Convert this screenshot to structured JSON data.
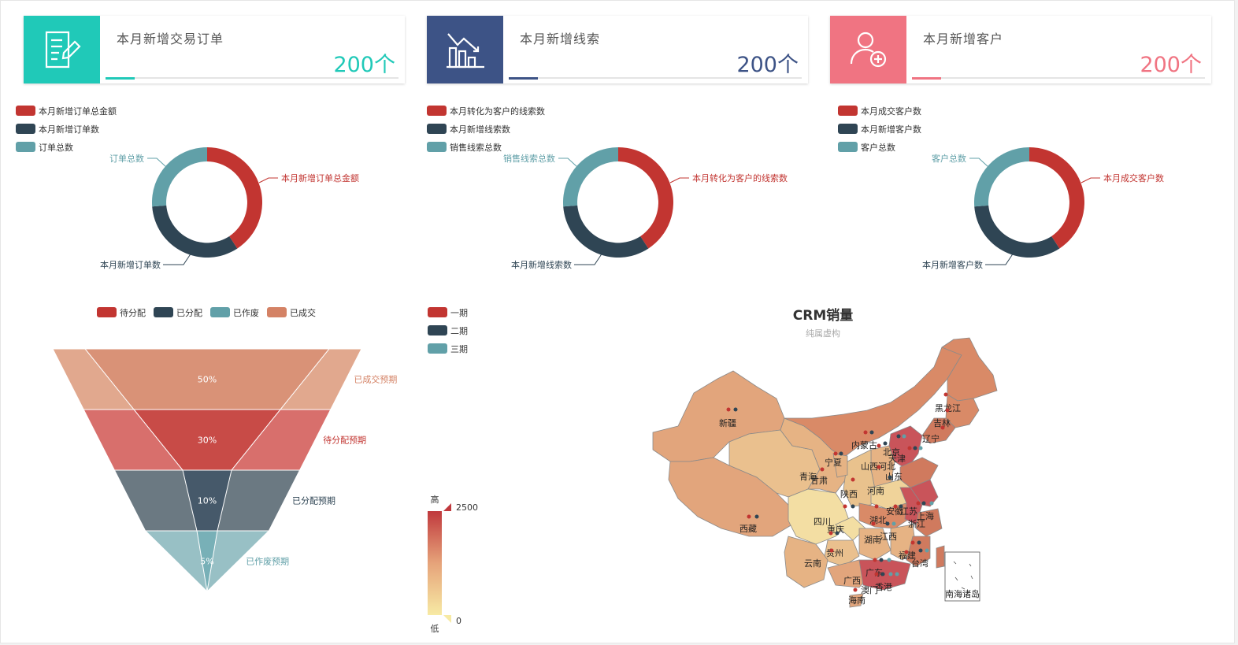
{
  "cards": [
    {
      "title": "本月新增交易订单",
      "value": "200个",
      "color": "#20c9b8",
      "icon": "document-edit-icon"
    },
    {
      "title": "本月新增线索",
      "value": "200个",
      "color": "#3d5386",
      "icon": "bar-chart-trend-icon"
    },
    {
      "title": "本月新增客户",
      "value": "200个",
      "color": "#f07482",
      "icon": "add-user-icon"
    }
  ],
  "colors": {
    "red": "#c23531",
    "navy": "#2f4554",
    "teal": "#61a0a8",
    "orange": "#d48265"
  },
  "donuts": [
    {
      "legend": [
        "本月新增订单总金额",
        "本月新增订单数",
        "订单总数"
      ],
      "labels": {
        "red": "本月新增订单总金额",
        "navy": "本月新增订单数",
        "teal": "订单总数"
      }
    },
    {
      "legend": [
        "本月转化为客户的线索数",
        "本月新增线索数",
        "销售线索总数"
      ],
      "labels": {
        "red": "本月转化为客户的线索数",
        "navy": "本月新增线索数",
        "teal": "销售线索总数"
      }
    },
    {
      "legend": [
        "本月成交客户数",
        "本月新增客户数",
        "客户总数"
      ],
      "labels": {
        "red": "本月成交客户数",
        "navy": "本月新增客户数",
        "teal": "客户总数"
      }
    }
  ],
  "chart_data": [
    {
      "type": "pie",
      "name": "donut-1",
      "slices": [
        {
          "name": "本月新增订单总金额",
          "value": 1
        },
        {
          "name": "本月新增订单数",
          "value": 1
        },
        {
          "name": "订单总数",
          "value": 1
        }
      ]
    },
    {
      "type": "pie",
      "name": "donut-2",
      "slices": [
        {
          "name": "本月转化为客户的线索数",
          "value": 1
        },
        {
          "name": "本月新增线索数",
          "value": 1
        },
        {
          "name": "销售线索总数",
          "value": 1
        }
      ]
    },
    {
      "type": "pie",
      "name": "donut-3",
      "slices": [
        {
          "name": "本月成交客户数",
          "value": 1
        },
        {
          "name": "本月新增客户数",
          "value": 1
        },
        {
          "name": "客户总数",
          "value": 1
        }
      ]
    },
    {
      "type": "funnel",
      "legend": [
        "待分配",
        "已分配",
        "已作废",
        "已成交"
      ],
      "outer": [
        {
          "label": "已成交预期",
          "value": 100
        },
        {
          "label": "待分配预期",
          "value": 80
        },
        {
          "label": "已分配预期",
          "value": 60
        },
        {
          "label": "已作废预期",
          "value": 40
        }
      ],
      "inner": [
        {
          "label": "50%",
          "value": 50
        },
        {
          "label": "30%",
          "value": 30
        },
        {
          "label": "10%",
          "value": 10
        },
        {
          "label": "5%",
          "value": 5
        }
      ]
    },
    {
      "type": "map",
      "title": "CRM销量",
      "subtitle": "纯属虚构",
      "legend": [
        "一期",
        "二期",
        "三期"
      ],
      "visual_map": {
        "high_label": "高",
        "low_label": "低",
        "max": "2500",
        "min": "0"
      },
      "provinces": [
        "新疆",
        "西藏",
        "青海",
        "甘肃",
        "内蒙古",
        "宁夏",
        "陕西",
        "山西",
        "河北",
        "北京",
        "天津",
        "辽宁",
        "吉林",
        "黑龙江",
        "山东",
        "河南",
        "四川",
        "重庆",
        "湖北",
        "安徽",
        "江苏",
        "上海",
        "浙江",
        "湖南",
        "江西",
        "福建",
        "台湾",
        "贵州",
        "云南",
        "广西",
        "广东",
        "香港",
        "澳门",
        "海南",
        "南海诸岛"
      ]
    }
  ]
}
